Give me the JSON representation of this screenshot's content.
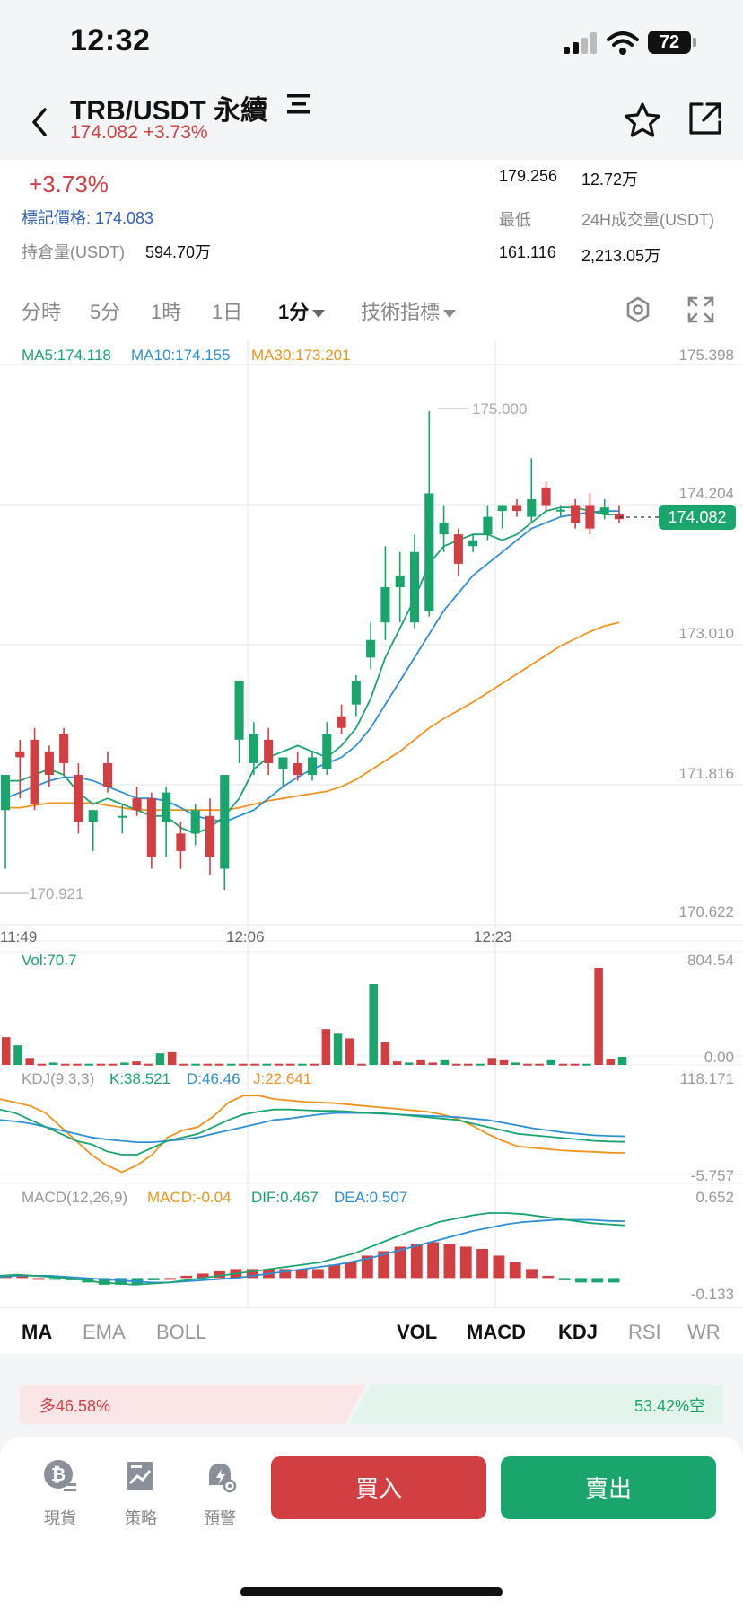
{
  "status": {
    "time": "12:32",
    "battery": "72"
  },
  "header": {
    "pair": "TRB/USDT 永續",
    "price_change": "174.082 +3.73%"
  },
  "stats": {
    "change_pct": "+3.73%",
    "mark_price": "標記價格: 174.083",
    "open_interest_label": "持倉量(USDT)",
    "open_interest_value": "594.70万",
    "high_value": "179.256",
    "vol24_value": "12.72万",
    "low_label": "最低",
    "vol24_label": "24H成交量(USDT)",
    "low_value": "161.116",
    "turnover_value": "2,213.05万"
  },
  "timeframes": [
    "分時",
    "5分",
    "1時",
    "1日"
  ],
  "timeframe_selected": "1分",
  "indicators_label": "技術指標",
  "legend": {
    "ma5": "MA5:174.118",
    "ma10": "MA10:174.155",
    "ma30": "MA30:173.201",
    "vol": "Vol:70.7",
    "kdj": "KDJ(9,3,3)",
    "k": "K:38.521",
    "d": "D:46.46",
    "j": "J:22.641",
    "macd": "MACD(12,26,9)",
    "macd_val": "MACD:-0.04",
    "dif": "DIF:0.467",
    "dea": "DEA:0.507"
  },
  "axis": {
    "price_ticks": [
      "175.398",
      "174.204",
      "173.010",
      "171.816",
      "170.622"
    ],
    "time_ticks": [
      "11:49",
      "12:06",
      "12:23"
    ],
    "high_marker": "175.000",
    "low_marker": "170.921",
    "last_price": "174.082",
    "vol_max": "804.54",
    "vol_min": "0.00",
    "kdj_max": "118.171",
    "kdj_min": "-5.757",
    "macd_max": "0.652",
    "macd_min": "-0.133"
  },
  "indicator_tabs_left": [
    "MA",
    "EMA",
    "BOLL"
  ],
  "indicator_tabs_right": [
    "VOL",
    "MACD",
    "KDJ",
    "RSI",
    "WR"
  ],
  "long_short": {
    "long": "多46.58%",
    "short": "53.42%空"
  },
  "nav": [
    "現貨",
    "策略",
    "預警"
  ],
  "buy_label": "買入",
  "sell_label": "賣出",
  "colors": {
    "up": "#d23f43",
    "down": "#1aa56d",
    "ma5": "#1aa56d",
    "ma10": "#2d8fd6",
    "ma30": "#f0931d"
  },
  "chart_data": {
    "type": "candlestick",
    "ylim": [
      170.622,
      175.398
    ],
    "candles": [
      {
        "o": 171.6,
        "h": 171.9,
        "l": 171.1,
        "c": 171.9
      },
      {
        "o": 172.1,
        "h": 172.2,
        "l": 171.7,
        "c": 172.05
      },
      {
        "o": 172.2,
        "h": 172.3,
        "l": 171.6,
        "c": 171.65
      },
      {
        "o": 172.1,
        "h": 172.15,
        "l": 171.8,
        "c": 171.9
      },
      {
        "o": 172.25,
        "h": 172.3,
        "l": 171.9,
        "c": 172.0
      },
      {
        "o": 171.9,
        "h": 172.0,
        "l": 171.4,
        "c": 171.5
      },
      {
        "o": 171.5,
        "h": 171.6,
        "l": 171.25,
        "c": 171.6
      },
      {
        "o": 172.0,
        "h": 172.1,
        "l": 171.75,
        "c": 171.8
      },
      {
        "o": 171.55,
        "h": 171.65,
        "l": 171.4,
        "c": 171.55
      },
      {
        "o": 171.7,
        "h": 171.8,
        "l": 171.55,
        "c": 171.6
      },
      {
        "o": 171.7,
        "h": 171.75,
        "l": 171.1,
        "c": 171.2
      },
      {
        "o": 171.5,
        "h": 171.8,
        "l": 171.2,
        "c": 171.75
      },
      {
        "o": 171.4,
        "h": 171.5,
        "l": 171.1,
        "c": 171.25
      },
      {
        "o": 171.4,
        "h": 171.65,
        "l": 171.3,
        "c": 171.6
      },
      {
        "o": 171.55,
        "h": 171.7,
        "l": 171.05,
        "c": 171.2
      },
      {
        "o": 171.1,
        "h": 171.9,
        "l": 170.92,
        "c": 171.9
      },
      {
        "o": 172.2,
        "h": 172.7,
        "l": 172.0,
        "c": 172.7
      },
      {
        "o": 172.0,
        "h": 172.35,
        "l": 171.9,
        "c": 172.25
      },
      {
        "o": 172.2,
        "h": 172.3,
        "l": 171.9,
        "c": 172.0
      },
      {
        "o": 171.95,
        "h": 172.05,
        "l": 171.8,
        "c": 172.05
      },
      {
        "o": 172.0,
        "h": 172.1,
        "l": 171.85,
        "c": 171.9
      },
      {
        "o": 171.9,
        "h": 172.1,
        "l": 171.85,
        "c": 172.05
      },
      {
        "o": 171.95,
        "h": 172.35,
        "l": 171.9,
        "c": 172.25
      },
      {
        "o": 172.4,
        "h": 172.5,
        "l": 172.25,
        "c": 172.3
      },
      {
        "o": 172.5,
        "h": 172.75,
        "l": 172.4,
        "c": 172.7
      },
      {
        "o": 172.9,
        "h": 173.2,
        "l": 172.8,
        "c": 173.05
      },
      {
        "o": 173.2,
        "h": 173.85,
        "l": 173.05,
        "c": 173.5
      },
      {
        "o": 173.5,
        "h": 173.8,
        "l": 173.2,
        "c": 173.6
      },
      {
        "o": 173.2,
        "h": 173.95,
        "l": 173.15,
        "c": 173.8
      },
      {
        "o": 173.3,
        "h": 175.0,
        "l": 173.25,
        "c": 174.3
      },
      {
        "o": 173.95,
        "h": 174.2,
        "l": 173.8,
        "c": 174.05
      },
      {
        "o": 173.95,
        "h": 174.0,
        "l": 173.6,
        "c": 173.7
      },
      {
        "o": 173.85,
        "h": 173.95,
        "l": 173.8,
        "c": 173.9
      },
      {
        "o": 173.95,
        "h": 174.2,
        "l": 173.9,
        "c": 174.1
      },
      {
        "o": 174.15,
        "h": 174.2,
        "l": 174.0,
        "c": 174.2
      },
      {
        "o": 174.2,
        "h": 174.25,
        "l": 174.1,
        "c": 174.15
      },
      {
        "o": 174.1,
        "h": 174.6,
        "l": 174.05,
        "c": 174.25
      },
      {
        "o": 174.35,
        "h": 174.4,
        "l": 174.15,
        "c": 174.2
      },
      {
        "o": 174.15,
        "h": 174.2,
        "l": 174.1,
        "c": 174.16
      },
      {
        "o": 174.2,
        "h": 174.25,
        "l": 174.0,
        "c": 174.05
      },
      {
        "o": 174.2,
        "h": 174.3,
        "l": 173.95,
        "c": 174.0
      },
      {
        "o": 174.12,
        "h": 174.25,
        "l": 174.08,
        "c": 174.18
      },
      {
        "o": 174.12,
        "h": 174.2,
        "l": 174.05,
        "c": 174.08
      }
    ],
    "ma5": [
      171.85,
      171.85,
      171.9,
      171.95,
      171.9,
      171.75,
      171.65,
      171.7,
      171.65,
      171.6,
      171.55,
      171.55,
      171.45,
      171.4,
      171.45,
      171.55,
      171.7,
      171.95,
      172.05,
      172.1,
      172.15,
      172.1,
      172.05,
      172.15,
      172.3,
      172.55,
      172.9,
      173.15,
      173.4,
      173.7,
      173.85,
      173.9,
      173.95,
      173.95,
      173.9,
      173.95,
      174.05,
      174.15,
      174.18,
      174.18,
      174.15,
      174.12,
      174.12
    ],
    "ma10": [
      171.7,
      171.75,
      171.8,
      171.85,
      171.88,
      171.88,
      171.85,
      171.8,
      171.75,
      171.7,
      171.7,
      171.68,
      171.62,
      171.55,
      171.52,
      171.5,
      171.55,
      171.6,
      171.7,
      171.8,
      171.88,
      171.95,
      172.0,
      172.05,
      172.15,
      172.3,
      172.5,
      172.7,
      172.9,
      173.1,
      173.3,
      173.45,
      173.6,
      173.7,
      173.8,
      173.9,
      174.0,
      174.05,
      174.1,
      174.12,
      174.14,
      174.15,
      174.15
    ],
    "ma30": [
      171.62,
      171.62,
      171.64,
      171.66,
      171.66,
      171.66,
      171.66,
      171.64,
      171.62,
      171.6,
      171.6,
      171.6,
      171.6,
      171.6,
      171.6,
      171.6,
      171.62,
      171.65,
      171.68,
      171.7,
      171.72,
      171.74,
      171.76,
      171.8,
      171.86,
      171.94,
      172.02,
      172.1,
      172.2,
      172.3,
      172.38,
      172.45,
      172.52,
      172.6,
      172.68,
      172.76,
      172.84,
      172.92,
      173.0,
      173.06,
      173.12,
      173.17,
      173.2
    ],
    "volume": [
      240,
      170,
      60,
      10,
      20,
      10,
      10,
      10,
      10,
      10,
      20,
      30,
      10,
      100,
      110,
      10,
      10,
      10,
      10,
      10,
      10,
      10,
      10,
      10,
      10,
      10,
      10,
      310,
      270,
      230,
      10,
      700,
      200,
      30,
      20,
      40,
      20,
      40,
      10,
      10,
      10,
      60,
      40,
      20,
      10,
      10,
      40,
      10,
      10,
      10,
      840,
      50,
      70
    ],
    "kdj_k": [
      85,
      80,
      70,
      60,
      50,
      40,
      35,
      25,
      20,
      20,
      30,
      40,
      45,
      50,
      60,
      70,
      78,
      82,
      85,
      85,
      84,
      83,
      83,
      82,
      80,
      80,
      78,
      76,
      74,
      72,
      70,
      65,
      60,
      55,
      50,
      48,
      46,
      44,
      42,
      40,
      39,
      38.5
    ],
    "kdj_d": [
      70,
      68,
      65,
      60,
      55,
      50,
      45,
      42,
      40,
      38,
      38,
      40,
      42,
      45,
      50,
      55,
      60,
      65,
      70,
      72,
      75,
      78,
      80,
      80,
      80,
      79,
      78,
      77,
      76,
      75,
      74,
      72,
      70,
      66,
      62,
      58,
      55,
      52,
      50,
      48,
      47,
      46.5
    ],
    "kdj_j": [
      100,
      95,
      90,
      80,
      60,
      40,
      20,
      5,
      -5,
      5,
      20,
      45,
      55,
      60,
      75,
      95,
      105,
      105,
      100,
      98,
      96,
      95,
      94,
      92,
      90,
      88,
      86,
      84,
      82,
      78,
      72,
      62,
      50,
      40,
      32,
      30,
      28,
      26,
      25,
      24,
      23,
      22.6
    ],
    "macd_dif": [
      0.02,
      0.03,
      0.02,
      0.01,
      0.0,
      -0.02,
      -0.04,
      -0.05,
      -0.06,
      -0.05,
      -0.04,
      -0.02,
      0.0,
      0.02,
      0.04,
      0.06,
      0.08,
      0.1,
      0.12,
      0.14,
      0.18,
      0.22,
      0.28,
      0.34,
      0.4,
      0.45,
      0.5,
      0.53,
      0.56,
      0.58,
      0.58,
      0.57,
      0.55,
      0.53,
      0.51,
      0.49,
      0.48,
      0.47
    ],
    "macd_dea": [
      0.01,
      0.02,
      0.02,
      0.02,
      0.01,
      0.0,
      -0.01,
      -0.02,
      -0.03,
      -0.04,
      -0.04,
      -0.03,
      -0.02,
      -0.01,
      0.0,
      0.02,
      0.04,
      0.06,
      0.08,
      0.1,
      0.12,
      0.15,
      0.18,
      0.22,
      0.26,
      0.3,
      0.34,
      0.38,
      0.42,
      0.45,
      0.48,
      0.5,
      0.51,
      0.52,
      0.52,
      0.52,
      0.51,
      0.507
    ],
    "macd_hist": [
      0.02,
      0.02,
      0.0,
      -0.01,
      -0.02,
      -0.04,
      -0.06,
      -0.06,
      -0.06,
      -0.02,
      0.0,
      0.02,
      0.04,
      0.06,
      0.08,
      0.08,
      0.08,
      0.08,
      0.08,
      0.08,
      0.12,
      0.14,
      0.2,
      0.24,
      0.28,
      0.3,
      0.32,
      0.3,
      0.28,
      0.26,
      0.2,
      0.14,
      0.08,
      0.02,
      -0.02,
      -0.04,
      -0.04,
      -0.04
    ]
  }
}
